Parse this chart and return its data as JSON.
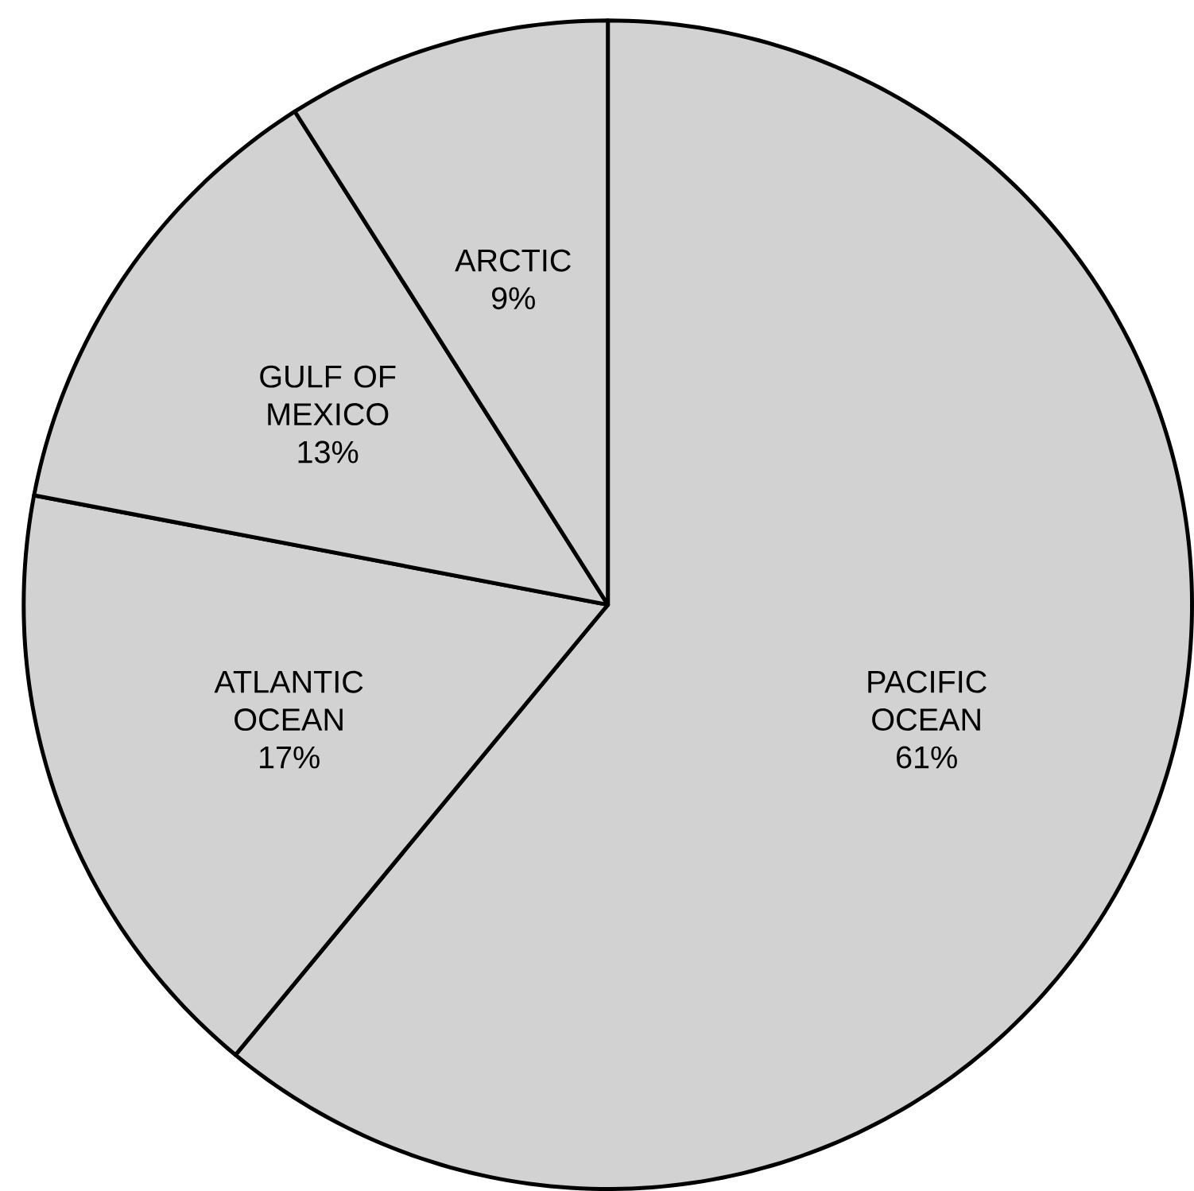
{
  "chart_data": {
    "type": "pie",
    "categories": [
      "PACIFIC OCEAN",
      "ATLANTIC OCEAN",
      "GULF OF MEXICO",
      "ARCTIC"
    ],
    "values": [
      61,
      17,
      13,
      9
    ],
    "value_labels": [
      "61%",
      "17%",
      "13%",
      "9%"
    ],
    "colors": [
      "#d2d2d2",
      "#d2d2d2",
      "#d2d2d2",
      "#d2d2d2"
    ]
  }
}
